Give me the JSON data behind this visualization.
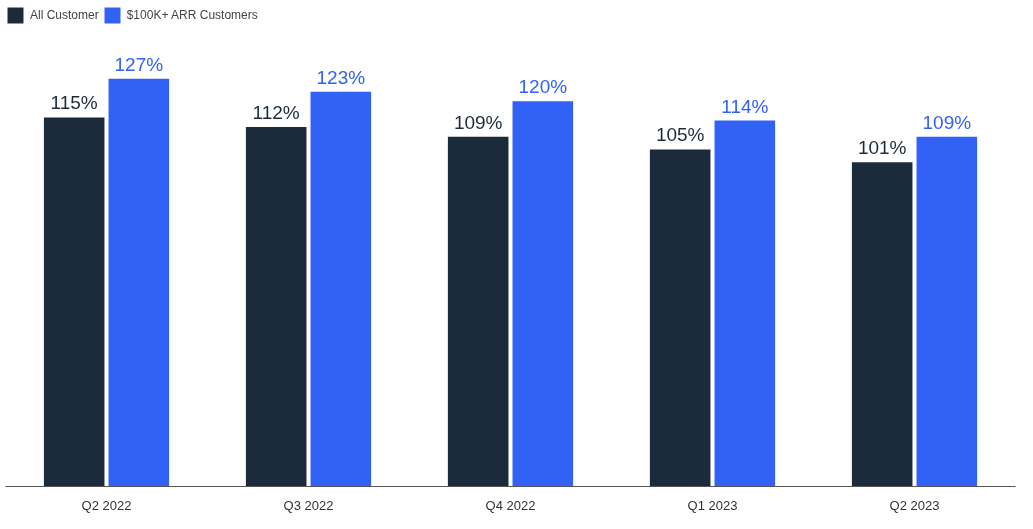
{
  "chart_data": {
    "type": "bar",
    "categories": [
      "Q2 2022",
      "Q3 2022",
      "Q4 2022",
      "Q1 2023",
      "Q2 2023"
    ],
    "series": [
      {
        "name": "All Customer",
        "color": "#1c2b3c",
        "values": [
          115,
          112,
          109,
          105,
          101
        ],
        "value_labels": [
          "115%",
          "112%",
          "109%",
          "105%",
          "101%"
        ]
      },
      {
        "name": "$100K+ ARR Customers",
        "color": "#3162f5",
        "values": [
          127,
          123,
          120,
          114,
          109
        ],
        "value_labels": [
          "127%",
          "123%",
          "120%",
          "114%",
          "109%"
        ]
      }
    ],
    "legend": "top left",
    "grid": false
  }
}
